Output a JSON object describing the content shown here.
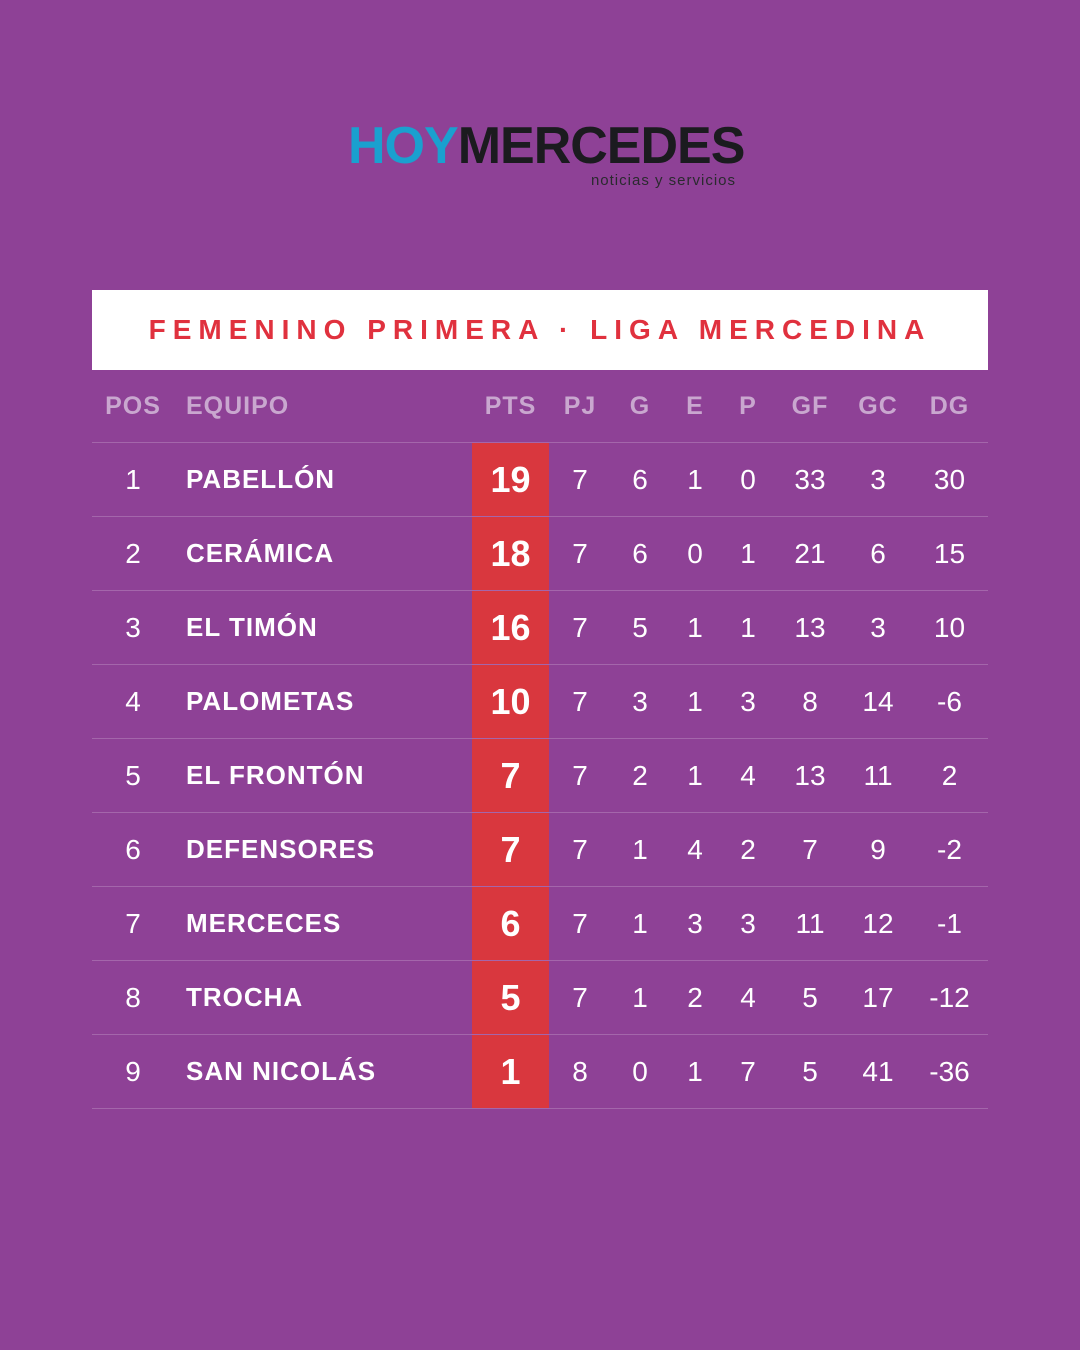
{
  "brand": {
    "hoy": "HOY",
    "mercedes": "MERCEDES",
    "tagline": "noticias y servicios"
  },
  "title": "FEMENINO PRIMERA · LIGA MERCEDINA",
  "headers": {
    "pos": "POS",
    "team": "EQUIPO",
    "pts": "PTS",
    "pj": "PJ",
    "g": "G",
    "e": "E",
    "p": "P",
    "gf": "GF",
    "gc": "GC",
    "dg": "DG"
  },
  "rows": [
    {
      "pos": "1",
      "team": "PABELLÓN",
      "pts": "19",
      "pj": "7",
      "g": "6",
      "e": "1",
      "p": "0",
      "gf": "33",
      "gc": "3",
      "dg": "30"
    },
    {
      "pos": "2",
      "team": "CERÁMICA",
      "pts": "18",
      "pj": "7",
      "g": "6",
      "e": "0",
      "p": "1",
      "gf": "21",
      "gc": "6",
      "dg": "15"
    },
    {
      "pos": "3",
      "team": "EL TIMÓN",
      "pts": "16",
      "pj": "7",
      "g": "5",
      "e": "1",
      "p": "1",
      "gf": "13",
      "gc": "3",
      "dg": "10"
    },
    {
      "pos": "4",
      "team": "PALOMETAS",
      "pts": "10",
      "pj": "7",
      "g": "3",
      "e": "1",
      "p": "3",
      "gf": "8",
      "gc": "14",
      "dg": "-6"
    },
    {
      "pos": "5",
      "team": "EL FRONTÓN",
      "pts": "7",
      "pj": "7",
      "g": "2",
      "e": "1",
      "p": "4",
      "gf": "13",
      "gc": "11",
      "dg": "2"
    },
    {
      "pos": "6",
      "team": "DEFENSORES",
      "pts": "7",
      "pj": "7",
      "g": "1",
      "e": "4",
      "p": "2",
      "gf": "7",
      "gc": "9",
      "dg": "-2"
    },
    {
      "pos": "7",
      "team": "MERCECES",
      "pts": "6",
      "pj": "7",
      "g": "1",
      "e": "3",
      "p": "3",
      "gf": "11",
      "gc": "12",
      "dg": "-1"
    },
    {
      "pos": "8",
      "team": "TROCHA",
      "pts": "5",
      "pj": "7",
      "g": "1",
      "e": "2",
      "p": "4",
      "gf": "5",
      "gc": "17",
      "dg": "-12"
    },
    {
      "pos": "9",
      "team": "SAN NICOLÁS",
      "pts": "1",
      "pj": "8",
      "g": "0",
      "e": "1",
      "p": "7",
      "gf": "5",
      "gc": "41",
      "dg": "-36"
    }
  ],
  "colors": {
    "background": "#8e4196",
    "accent": "#d9373e",
    "brand_blue": "#1aa0cf"
  }
}
